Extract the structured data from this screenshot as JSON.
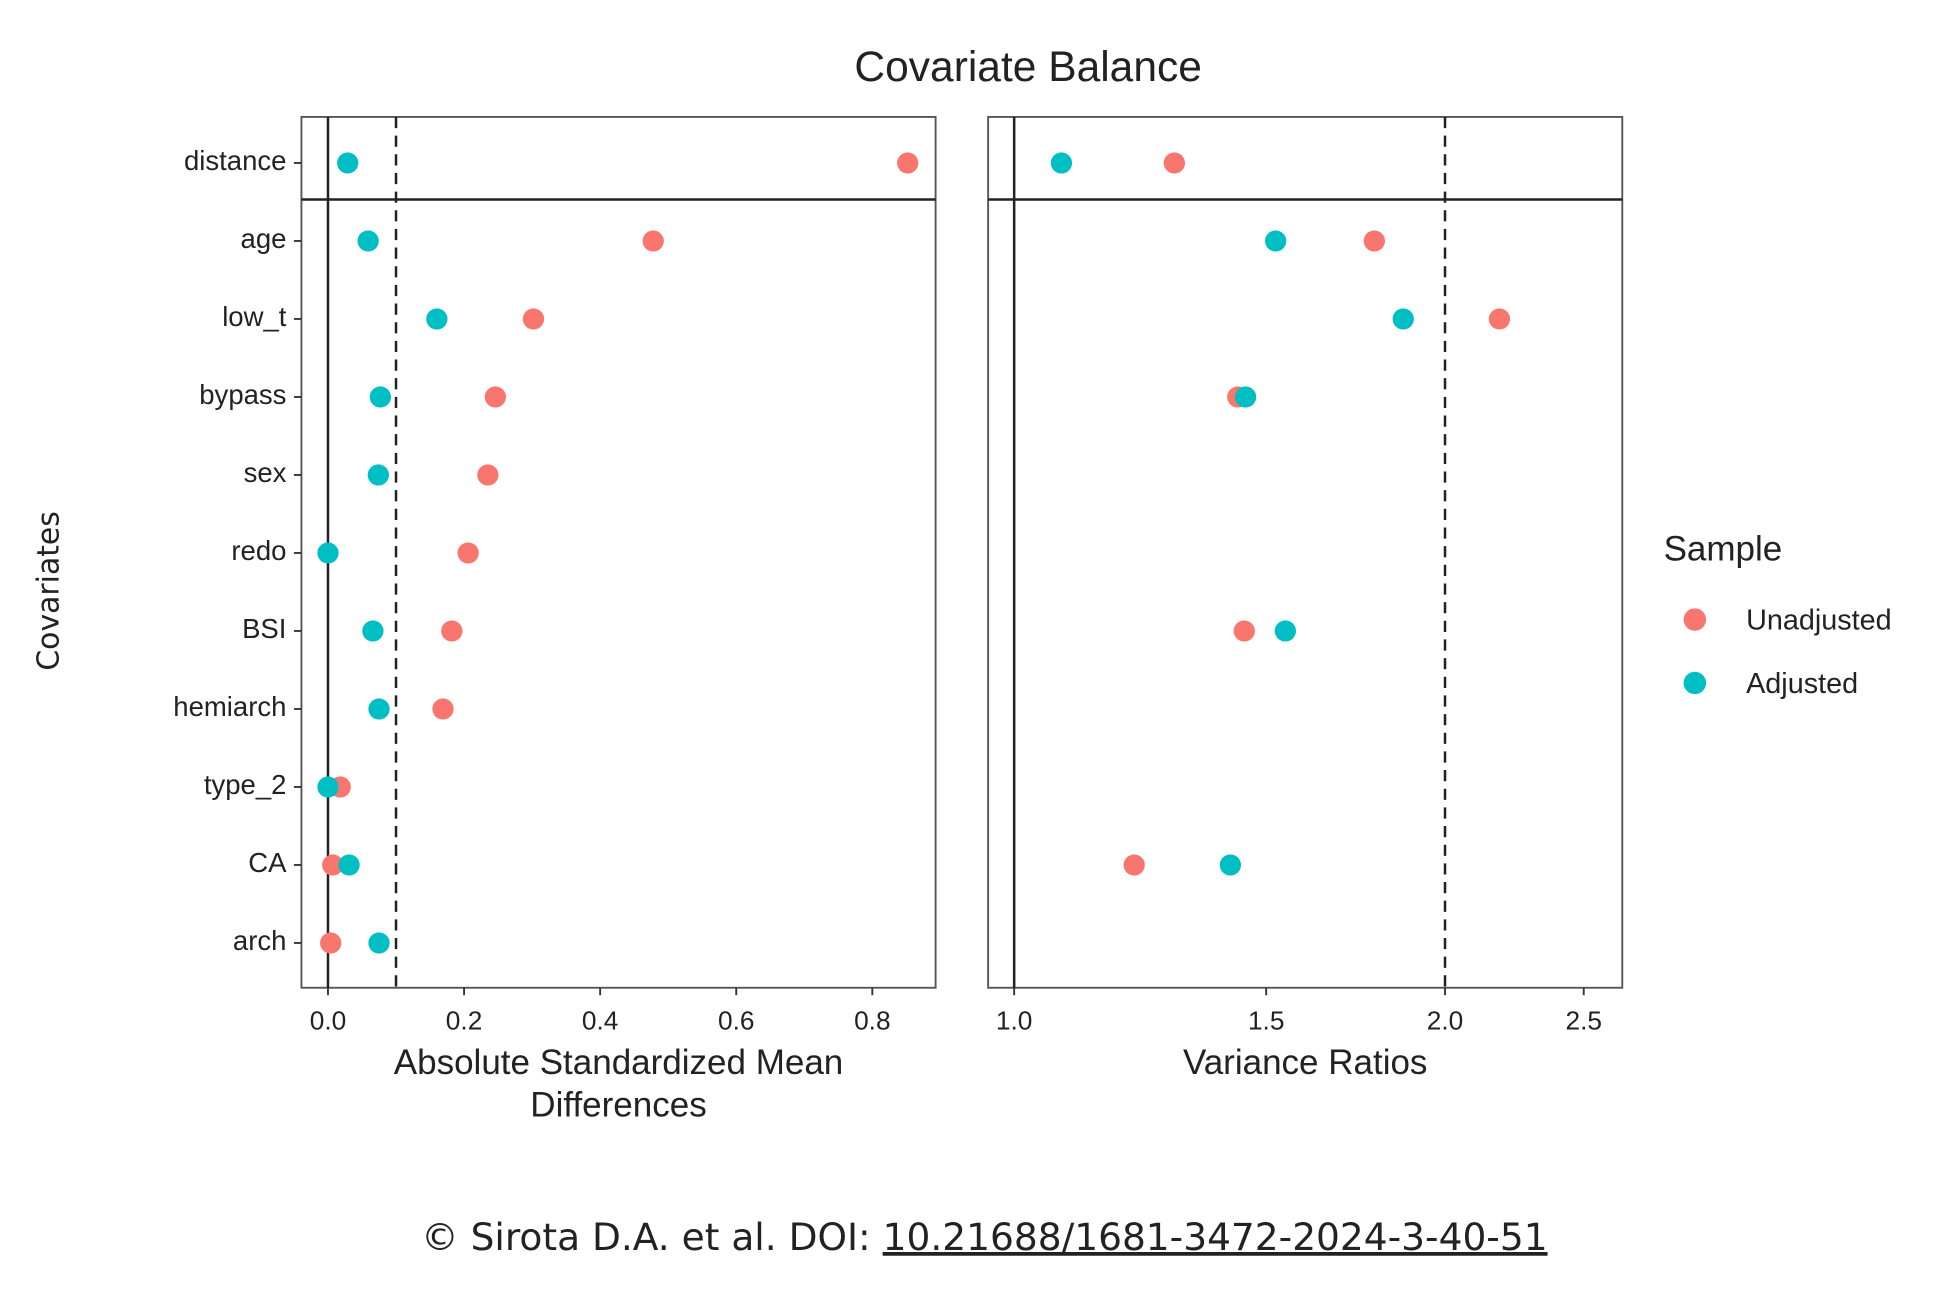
{
  "title": "Covariate Balance",
  "ylabel": "Covariates",
  "legend_title": "Sample",
  "caption": {
    "text": "© Sirota D.A. et al. DOI: ",
    "doi": "10.21688/1681-3472-2024-3-40-51"
  },
  "chart_data": [
    {
      "type": "dot",
      "categories": [
        "distance",
        "age",
        "low_t",
        "bypass",
        "sex",
        "redo",
        "BSI",
        "hemiarch",
        "type_2",
        "CA",
        "arch"
      ],
      "xlabel": [
        "Absolute Standardized Mean",
        "Differences"
      ],
      "xlim": [
        -0.039,
        0.893
      ],
      "xticks": [
        {
          "value": 0,
          "label": "0.0"
        },
        0.2,
        0.4,
        0.6,
        0.8
      ],
      "reference": 0,
      "threshold": 0.1,
      "series": [
        {
          "name": "Unadjusted",
          "color": "#F8766D",
          "values": [
            0.852,
            0.478,
            0.302,
            0.246,
            0.235,
            0.206,
            0.182,
            0.169,
            0.018,
            0.007,
            0.004
          ]
        },
        {
          "name": "Adjusted",
          "color": "#00BFC4",
          "values": [
            0.029,
            0.059,
            0.16,
            0.077,
            0.074,
            0,
            0.066,
            0.075,
            0,
            0.031,
            0.075
          ]
        }
      ]
    },
    {
      "type": "dot",
      "xlabel": [
        "Variance Ratios"
      ],
      "xscale": "log",
      "xlim": [
        0.959,
        2.66
      ],
      "xticks": [
        {
          "value": 1,
          "label": "1.0"
        },
        1.5,
        {
          "value": 2,
          "label": "2.0"
        },
        2.5
      ],
      "reference": 1,
      "threshold": 2,
      "series": [
        {
          "name": "Unadjusted",
          "color": "#F8766D",
          "values": [
            1.294,
            1.785,
            2.183,
            1.433,
            null,
            null,
            1.448,
            null,
            null,
            1.213,
            null
          ]
        },
        {
          "name": "Adjusted",
          "color": "#00BFC4",
          "values": [
            1.079,
            1.523,
            1.87,
            1.451,
            null,
            null,
            1.547,
            null,
            null,
            1.416,
            null
          ]
        }
      ]
    }
  ]
}
